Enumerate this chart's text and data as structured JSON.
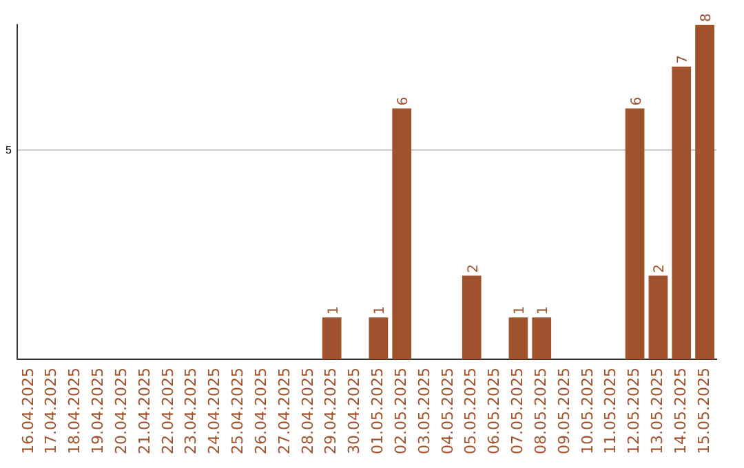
{
  "chart_data": {
    "type": "bar",
    "categories": [
      "16.04.2025",
      "17.04.2025",
      "18.04.2025",
      "19.04.2025",
      "20.04.2025",
      "21.04.2025",
      "22.04.2025",
      "23.04.2025",
      "24.04.2025",
      "25.04.2025",
      "26.04.2025",
      "27.04.2025",
      "28.04.2025",
      "29.04.2025",
      "30.04.2025",
      "01.05.2025",
      "02.05.2025",
      "03.05.2025",
      "04.05.2025",
      "05.05.2025",
      "06.05.2025",
      "07.05.2025",
      "08.05.2025",
      "09.05.2025",
      "10.05.2025",
      "11.05.2025",
      "12.05.2025",
      "13.05.2025",
      "14.05.2025",
      "15.05.2025"
    ],
    "values": [
      null,
      null,
      null,
      null,
      null,
      null,
      null,
      null,
      null,
      null,
      null,
      null,
      null,
      1,
      null,
      1,
      6,
      null,
      null,
      2,
      null,
      1,
      1,
      null,
      null,
      null,
      6,
      2,
      7,
      8
    ],
    "data_labels": true,
    "color": "#a0522d",
    "ylim": [
      0,
      8
    ],
    "yticks": [
      5
    ],
    "grid": "y",
    "legend": false
  }
}
